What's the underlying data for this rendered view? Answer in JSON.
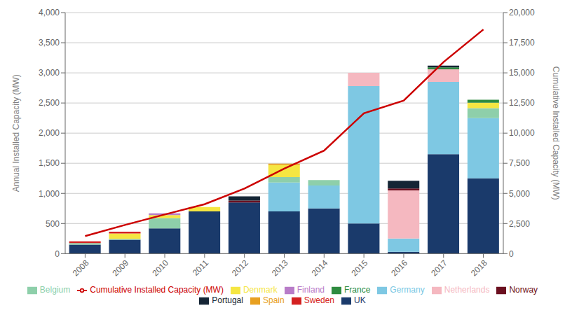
{
  "chart_data": {
    "type": "bar",
    "stacked": true,
    "grid": true,
    "legend": "bottom",
    "categories": [
      "2008",
      "2009",
      "2010",
      "2011",
      "2012",
      "2013",
      "2014",
      "2015",
      "2016",
      "2017",
      "2018"
    ],
    "ylabel": "Annual Installed Capacity (MW)",
    "y2label": "Cumulative Installed Capacity (MW)",
    "ylim": [
      0,
      4000
    ],
    "yticks": [
      0,
      500,
      {
        "value": 1000,
        "label": "1,000"
      },
      {
        "value": 1500,
        "label": "1,500"
      },
      {
        "value": 2000,
        "label": "2,000"
      },
      {
        "value": 2500,
        "label": "2,500"
      },
      {
        "value": 3000,
        "label": "3,000"
      },
      {
        "value": 3500,
        "label": "3,500"
      },
      {
        "value": 4000,
        "label": "4,000"
      }
    ],
    "y2lim": [
      0,
      20000
    ],
    "y2ticks": [
      0,
      {
        "value": 2500,
        "label": "2,500"
      },
      {
        "value": 5000,
        "label": "5,000"
      },
      {
        "value": 7500,
        "label": "7,500"
      },
      {
        "value": 10000,
        "label": "10,000"
      },
      {
        "value": 12500,
        "label": "12,500"
      },
      {
        "value": 15000,
        "label": "15,000"
      },
      {
        "value": 17500,
        "label": "17,500"
      },
      {
        "value": 20000,
        "label": "20,000"
      }
    ],
    "series": [
      {
        "name": "UK",
        "color": "#1a3a6b",
        "values": [
          150,
          230,
          420,
          700,
          850,
          700,
          750,
          500,
          30,
          1650,
          1250
        ]
      },
      {
        "name": "Germany",
        "color": "#7ec8e3",
        "values": [
          0,
          0,
          0,
          0,
          0,
          480,
          380,
          2280,
          220,
          1200,
          1000
        ]
      },
      {
        "name": "Belgium",
        "color": "#8ecfaa",
        "values": [
          25,
          15,
          170,
          0,
          0,
          90,
          90,
          0,
          0,
          0,
          165
        ]
      },
      {
        "name": "Denmark",
        "color": "#f5e642",
        "values": [
          0,
          90,
          50,
          75,
          0,
          200,
          0,
          0,
          0,
          0,
          90
        ]
      },
      {
        "name": "Spain",
        "color": "#e8a020",
        "values": [
          0,
          0,
          0,
          0,
          0,
          25,
          0,
          0,
          0,
          0,
          0
        ]
      },
      {
        "name": "Sweden",
        "color": "#d42020",
        "values": [
          30,
          30,
          0,
          0,
          0,
          0,
          0,
          0,
          0,
          0,
          0
        ]
      },
      {
        "name": "Netherlands",
        "color": "#f5b8c0",
        "values": [
          0,
          0,
          0,
          0,
          0,
          0,
          0,
          220,
          800,
          210,
          0
        ]
      },
      {
        "name": "France",
        "color": "#2e8b40",
        "values": [
          0,
          0,
          0,
          0,
          0,
          0,
          0,
          0,
          0,
          30,
          50
        ]
      },
      {
        "name": "Finland",
        "color": "#b87cc8",
        "values": [
          0,
          0,
          30,
          0,
          0,
          0,
          0,
          0,
          0,
          0,
          0
        ]
      },
      {
        "name": "Norway",
        "color": "#6b1020",
        "values": [
          0,
          0,
          0,
          0,
          30,
          0,
          0,
          0,
          30,
          0,
          0
        ]
      },
      {
        "name": "Portugal",
        "color": "#152535",
        "values": [
          0,
          0,
          0,
          0,
          70,
          0,
          0,
          0,
          130,
          30,
          0
        ]
      },
      {
        "name": "Cumulative Installed Capacity (MW)",
        "type": "line",
        "axis": "y2",
        "color": "#cc0000",
        "values": [
          1460,
          2380,
          3250,
          4100,
          5400,
          7050,
          8550,
          11650,
          12700,
          15900,
          18600
        ]
      }
    ]
  }
}
